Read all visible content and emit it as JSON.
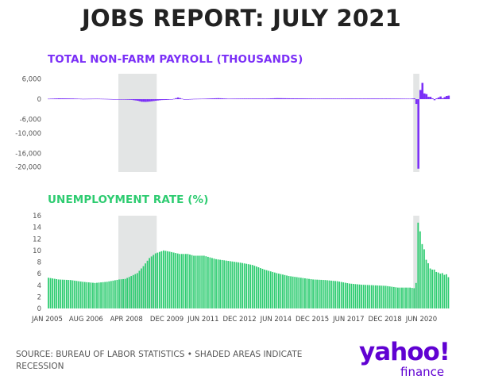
{
  "title": "JOBS REPORT: JULY 2021",
  "source": "SOURCE: BUREAU OF LABOR STATISTICS • SHADED AREAS INDICATE RECESSION",
  "logo": {
    "main": "yahoo!",
    "sub": "finance"
  },
  "colors": {
    "payroll": "#7b2ff7",
    "unemployment": "#2ecc71",
    "recession": "#e3e5e5",
    "title": "#222222"
  },
  "chart_data": [
    {
      "type": "bar",
      "title": "TOTAL NON-FARM PAYROLL (THOUSANDS)",
      "x_range": [
        "2005-01",
        "2021-07"
      ],
      "ylim": [
        -21500,
        7500
      ],
      "yticks": [
        "6,000",
        "0",
        "-6,000",
        "-10,000",
        "-16,000",
        "-20,000"
      ],
      "ytick_values": [
        6000,
        0,
        -6000,
        -10000,
        -16000,
        -20000
      ],
      "recessions": [
        [
          "2007-12",
          "2009-06"
        ],
        [
          "2020-02",
          "2020-04"
        ]
      ],
      "series": [
        {
          "points": [
            [
              "2005-01",
              130
            ],
            [
              "2005-06",
              250
            ],
            [
              "2006-01",
              200
            ],
            [
              "2006-06",
              100
            ],
            [
              "2007-01",
              150
            ],
            [
              "2007-06",
              80
            ],
            [
              "2007-12",
              -50
            ],
            [
              "2008-03",
              -150
            ],
            [
              "2008-06",
              -200
            ],
            [
              "2008-09",
              -450
            ],
            [
              "2008-11",
              -750
            ],
            [
              "2009-01",
              -800
            ],
            [
              "2009-03",
              -700
            ],
            [
              "2009-06",
              -450
            ],
            [
              "2009-09",
              -250
            ],
            [
              "2009-12",
              -200
            ],
            [
              "2010-03",
              100
            ],
            [
              "2010-05",
              500
            ],
            [
              "2010-08",
              -50
            ],
            [
              "2011-01",
              100
            ],
            [
              "2011-06",
              150
            ],
            [
              "2012-01",
              300
            ],
            [
              "2012-06",
              150
            ],
            [
              "2013-01",
              200
            ],
            [
              "2014-01",
              200
            ],
            [
              "2014-06",
              300
            ],
            [
              "2015-01",
              250
            ],
            [
              "2016-01",
              200
            ],
            [
              "2017-01",
              200
            ],
            [
              "2018-01",
              200
            ],
            [
              "2019-01",
              200
            ],
            [
              "2019-12",
              150
            ],
            [
              "2020-02",
              250
            ],
            [
              "2020-03",
              -1400
            ],
            [
              "2020-04",
              -20500
            ],
            [
              "2020-05",
              2700
            ],
            [
              "2020-06",
              4800
            ],
            [
              "2020-07",
              1700
            ],
            [
              "2020-08",
              1500
            ],
            [
              "2020-09",
              700
            ],
            [
              "2020-10",
              700
            ],
            [
              "2020-11",
              250
            ],
            [
              "2020-12",
              -300
            ],
            [
              "2021-01",
              230
            ],
            [
              "2021-02",
              500
            ],
            [
              "2021-03",
              800
            ],
            [
              "2021-04",
              270
            ],
            [
              "2021-05",
              600
            ],
            [
              "2021-06",
              940
            ],
            [
              "2021-07",
              1050
            ]
          ]
        }
      ]
    },
    {
      "type": "bar",
      "title": "UNEMPLOYMENT RATE (%)",
      "x_range": [
        "2005-01",
        "2021-07"
      ],
      "ylim": [
        0,
        16
      ],
      "yticks": [
        "0",
        "2",
        "4",
        "6",
        "8",
        "10",
        "12",
        "14",
        "16"
      ],
      "ytick_values": [
        0,
        2,
        4,
        6,
        8,
        10,
        12,
        14,
        16
      ],
      "xticks": [
        "JAN 2005",
        "AUG 2006",
        "APR 2008",
        "DEC 2009",
        "JUN 2011",
        "DEC 2012",
        "JUN 2014",
        "DEC 2015",
        "JUN 2017",
        "DEC 2018",
        "JUN 2020"
      ],
      "xtick_dates": [
        "2005-01",
        "2006-08",
        "2008-04",
        "2009-12",
        "2011-06",
        "2012-12",
        "2014-06",
        "2015-12",
        "2017-06",
        "2018-12",
        "2020-06"
      ],
      "recessions": [
        [
          "2007-12",
          "2009-06"
        ],
        [
          "2020-02",
          "2020-04"
        ]
      ],
      "series": [
        {
          "points": [
            [
              "2005-01",
              5.3
            ],
            [
              "2005-06",
              5.0
            ],
            [
              "2005-12",
              4.9
            ],
            [
              "2006-06",
              4.6
            ],
            [
              "2006-12",
              4.4
            ],
            [
              "2007-06",
              4.6
            ],
            [
              "2007-12",
              5.0
            ],
            [
              "2008-03",
              5.1
            ],
            [
              "2008-06",
              5.6
            ],
            [
              "2008-09",
              6.1
            ],
            [
              "2008-12",
              7.3
            ],
            [
              "2009-03",
              8.7
            ],
            [
              "2009-06",
              9.5
            ],
            [
              "2009-10",
              10.0
            ],
            [
              "2010-01",
              9.8
            ],
            [
              "2010-06",
              9.4
            ],
            [
              "2010-10",
              9.4
            ],
            [
              "2011-01",
              9.1
            ],
            [
              "2011-06",
              9.1
            ],
            [
              "2011-12",
              8.5
            ],
            [
              "2012-06",
              8.2
            ],
            [
              "2012-12",
              7.9
            ],
            [
              "2013-06",
              7.5
            ],
            [
              "2013-12",
              6.7
            ],
            [
              "2014-06",
              6.1
            ],
            [
              "2014-12",
              5.6
            ],
            [
              "2015-06",
              5.3
            ],
            [
              "2015-12",
              5.0
            ],
            [
              "2016-06",
              4.9
            ],
            [
              "2016-12",
              4.7
            ],
            [
              "2017-06",
              4.3
            ],
            [
              "2017-12",
              4.1
            ],
            [
              "2018-06",
              4.0
            ],
            [
              "2018-12",
              3.9
            ],
            [
              "2019-06",
              3.6
            ],
            [
              "2019-12",
              3.6
            ],
            [
              "2020-02",
              3.5
            ],
            [
              "2020-03",
              4.4
            ],
            [
              "2020-04",
              14.8
            ],
            [
              "2020-05",
              13.3
            ],
            [
              "2020-06",
              11.1
            ],
            [
              "2020-07",
              10.2
            ],
            [
              "2020-08",
              8.4
            ],
            [
              "2020-09",
              7.8
            ],
            [
              "2020-10",
              6.9
            ],
            [
              "2020-11",
              6.7
            ],
            [
              "2020-12",
              6.7
            ],
            [
              "2021-01",
              6.3
            ],
            [
              "2021-02",
              6.2
            ],
            [
              "2021-03",
              6.0
            ],
            [
              "2021-04",
              6.1
            ],
            [
              "2021-05",
              5.8
            ],
            [
              "2021-06",
              5.9
            ],
            [
              "2021-07",
              5.4
            ]
          ]
        }
      ]
    }
  ]
}
